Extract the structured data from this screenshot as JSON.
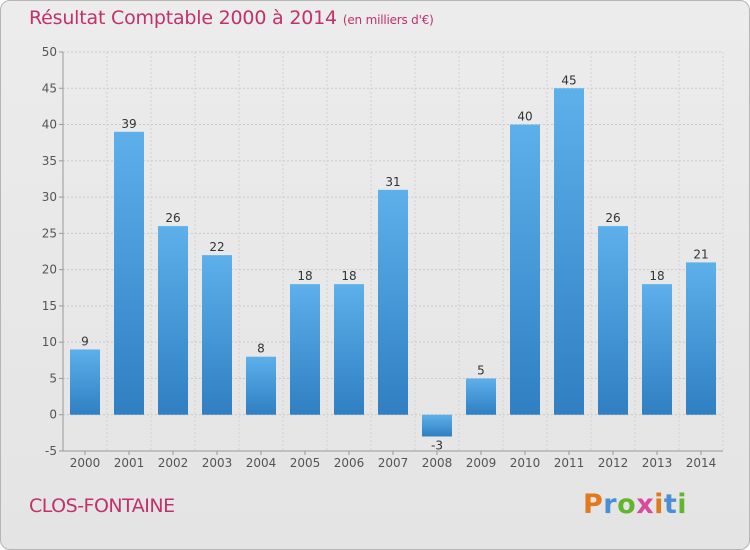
{
  "header": {
    "title": "Résultat Comptable 2000 à 2014",
    "unit": "(en milliers d'€)"
  },
  "footer": {
    "town": "CLOS-FONTAINE",
    "logo": {
      "letters": [
        "P",
        "r",
        "o",
        "x",
        "i",
        "t",
        "i"
      ],
      "colors": [
        "#e07a1c",
        "#4a8fd6",
        "#63b52f",
        "#d94a9b",
        "#e07a1c",
        "#4a8fd6",
        "#63b52f"
      ]
    }
  },
  "chart_data": {
    "type": "bar",
    "categories": [
      "2000",
      "2001",
      "2002",
      "2003",
      "2004",
      "2005",
      "2006",
      "2007",
      "2008",
      "2009",
      "2010",
      "2011",
      "2012",
      "2013",
      "2014"
    ],
    "values": [
      9,
      39,
      26,
      22,
      8,
      18,
      18,
      31,
      -3,
      5,
      40,
      45,
      26,
      18,
      21
    ],
    "title": "Résultat Comptable 2000 à 2014",
    "ylim": [
      -5,
      50
    ],
    "yticks": [
      -5,
      0,
      5,
      10,
      15,
      20,
      25,
      30,
      35,
      40,
      45,
      50
    ],
    "grid": true,
    "data_labels": true,
    "bar_color_light": "#5db0ea",
    "bar_color_dark": "#2f7fc2"
  }
}
